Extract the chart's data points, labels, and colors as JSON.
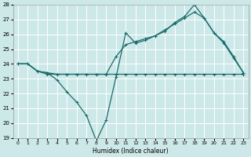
{
  "xlabel": "Humidex (Indice chaleur)",
  "xlim": [
    -0.5,
    23.5
  ],
  "ylim": [
    19,
    28
  ],
  "xticks": [
    0,
    1,
    2,
    3,
    4,
    5,
    6,
    7,
    8,
    9,
    10,
    11,
    12,
    13,
    14,
    15,
    16,
    17,
    18,
    19,
    20,
    21,
    22,
    23
  ],
  "yticks": [
    19,
    20,
    21,
    22,
    23,
    24,
    25,
    26,
    27,
    28
  ],
  "bg_color": "#cde8e8",
  "line_color": "#1a6b6b",
  "grid_color": "#b8d8d8",
  "line1_x": [
    0,
    1,
    2,
    3,
    4,
    5,
    6,
    7,
    8,
    9,
    10,
    11,
    12,
    13,
    14,
    15,
    16,
    17,
    18,
    19,
    20,
    21,
    22,
    23
  ],
  "line1_y": [
    24.0,
    24.0,
    23.5,
    23.3,
    23.3,
    23.3,
    23.3,
    23.3,
    23.3,
    23.3,
    23.3,
    23.3,
    23.3,
    23.3,
    23.3,
    23.3,
    23.3,
    23.3,
    23.3,
    23.3,
    23.3,
    23.3,
    23.3,
    23.3
  ],
  "line2_x": [
    0,
    1,
    2,
    3,
    4,
    5,
    6,
    7,
    8,
    9,
    10,
    11,
    12,
    13,
    14,
    15,
    16,
    17,
    18,
    19,
    20,
    21,
    22,
    23
  ],
  "line2_y": [
    24.0,
    24.0,
    23.5,
    23.4,
    22.9,
    22.1,
    21.4,
    20.5,
    18.8,
    20.2,
    23.1,
    26.1,
    25.4,
    25.6,
    25.9,
    26.2,
    26.8,
    27.2,
    28.0,
    27.1,
    26.1,
    25.4,
    24.4,
    23.4
  ],
  "line3_x": [
    0,
    1,
    2,
    3,
    4,
    5,
    6,
    7,
    8,
    9,
    10,
    11,
    12,
    13,
    14,
    15,
    16,
    17,
    18,
    19,
    20,
    21,
    22,
    23
  ],
  "line3_y": [
    24.0,
    24.0,
    23.5,
    23.4,
    23.3,
    23.3,
    23.3,
    23.3,
    23.3,
    23.3,
    24.5,
    25.3,
    25.5,
    25.7,
    25.9,
    26.3,
    26.7,
    27.1,
    27.5,
    27.1,
    26.1,
    25.5,
    24.5,
    23.4
  ],
  "marker_size": 3,
  "line_width": 0.9,
  "figsize": [
    3.2,
    2.0
  ],
  "dpi": 100
}
